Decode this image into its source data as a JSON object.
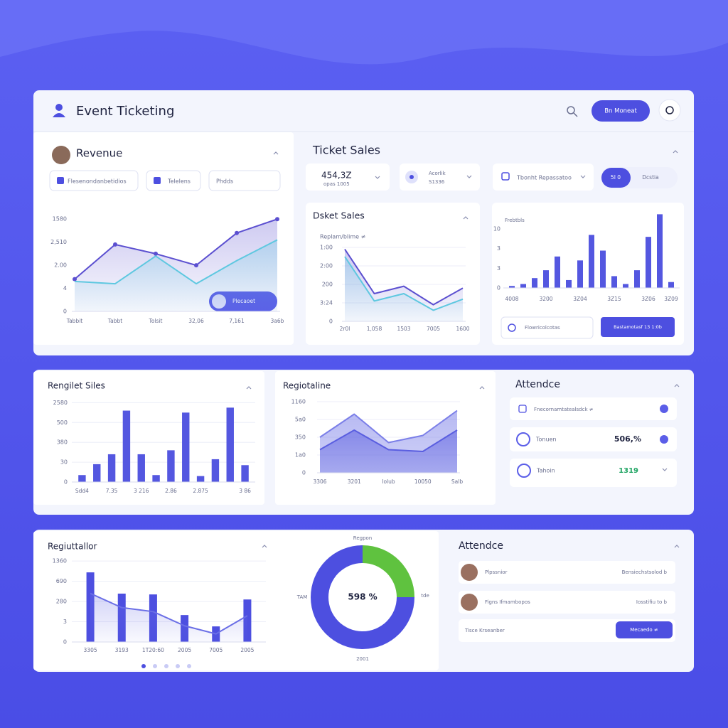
{
  "header": {
    "title": "Event Ticketing",
    "button": "Bn Moneat"
  },
  "revenue": {
    "filters": [
      "Flesenondanbetidios",
      "Telelens",
      "Phdds"
    ],
    "chart_button": "Plecaoet"
  },
  "ticket_sales": {
    "title": "Ticket Sales",
    "selects": [
      {
        "value": "454,3Z",
        "sub": "opas 1005"
      },
      {
        "value": "Acorlik",
        "sub": "S1336"
      },
      {
        "value": "Tbonht Repassatoo"
      }
    ],
    "toggle": [
      "5I 0",
      "Dcstia"
    ],
    "buttons": [
      "Flowricolcotas",
      "Bastamotasf 13 1:0b"
    ]
  },
  "attendance_1": {
    "title": "Attendce",
    "rows": [
      {
        "label": "Fnecornamtatealsdck ≠"
      },
      {
        "label": "Tonuen",
        "value": "506,%"
      },
      {
        "label": "Tahoin",
        "value": "1319"
      }
    ]
  },
  "attendance_2": {
    "title": "Attendce",
    "rows": [
      {
        "name": "Plpssnior",
        "detail": "Bensiechstsolod b"
      },
      {
        "name": "Figns Ifmambopos",
        "detail": "Iosstifiu to b"
      }
    ],
    "footer": {
      "label": "Tisce Krseanber",
      "button": "Mecaedo ≠"
    }
  },
  "chart_data": [
    {
      "type": "line",
      "title": "Revenue",
      "categories": [
        "Tabbit",
        "Tabbt",
        "Tolsit",
        "32,06",
        "7,161",
        "3a6b"
      ],
      "series": [
        {
          "color": "#5b4fd0",
          "values": [
            1.4,
            2.9,
            2.5,
            2.0,
            3.4,
            4.0
          ],
          "markers": true
        },
        {
          "color": "#5ec8e0",
          "values": [
            1.3,
            1.2,
            2.4,
            1.2,
            2.2,
            3.1
          ]
        }
      ],
      "ylim": [
        0,
        4.1
      ],
      "yticks": [
        0,
        {
          "value": 1,
          "label": "4"
        },
        {
          "value": 2,
          "label": "2.00"
        },
        {
          "value": 3,
          "label": "2,510"
        },
        {
          "value": 4,
          "label": "1580"
        }
      ],
      "fill": true,
      "grid": false
    },
    {
      "type": "line",
      "title": "Dsket Sales",
      "subtitle": "Replam/blime ≠",
      "categories": [
        "2r0l",
        "1,058",
        "1503",
        "7005",
        "1600"
      ],
      "series": [
        {
          "color": "#5b4fd0",
          "values": [
            3.9,
            1.5,
            1.9,
            0.9,
            1.8
          ]
        },
        {
          "color": "#5ec8e0",
          "values": [
            3.5,
            1.1,
            1.5,
            0.6,
            1.2
          ]
        }
      ],
      "ylim": [
        0,
        4
      ],
      "yticks": [
        0,
        {
          "value": 1,
          "label": "3:24"
        },
        {
          "value": 2,
          "label": "200"
        },
        {
          "value": 3,
          "label": "2:00"
        },
        {
          "value": 4,
          "label": "1:00"
        }
      ],
      "fill": true,
      "grid": true
    },
    {
      "type": "bar",
      "title": "Frebtbls",
      "categories": [
        "4008",
        null,
        null,
        "3200",
        null,
        null,
        "3Z04",
        null,
        null,
        "3Z15",
        null,
        null,
        "3Z06",
        null,
        "3Z09"
      ],
      "series": [
        {
          "color": "#5457e0",
          "values": [
            0.1,
            0.2,
            0.5,
            0.9,
            1.6,
            0.4,
            1.4,
            2.7,
            1.9,
            0.6,
            0.2,
            0.9,
            2.6,
            3.75,
            0.3
          ]
        }
      ],
      "ylim": [
        0,
        3.8
      ],
      "yticks": [
        0,
        {
          "value": 1,
          "label": "3"
        },
        {
          "value": 2,
          "label": "3"
        },
        {
          "value": 3,
          "label": "10"
        }
      ],
      "grid": false
    },
    {
      "type": "bar",
      "title": "Rengilet Siles",
      "categories": [
        "Sdd4",
        null,
        "7.35",
        null,
        "3 216",
        null,
        "2.86",
        null,
        "2.875",
        null,
        null,
        "3 86"
      ],
      "series": [
        {
          "color": "#5457e0",
          "values": [
            0.35,
            0.9,
            1.4,
            3.6,
            1.4,
            0.35,
            1.6,
            3.5,
            0.3,
            1.15,
            3.75,
            0.85
          ]
        }
      ],
      "ylim": [
        0,
        4.05
      ],
      "yticks": [
        0,
        {
          "value": 1,
          "label": "30"
        },
        {
          "value": 2,
          "label": "380"
        },
        {
          "value": 3,
          "label": "500"
        },
        {
          "value": 4,
          "label": "2580"
        }
      ],
      "grid": true
    },
    {
      "type": "area",
      "title": "Regiotaline",
      "categories": [
        "3306",
        "3201",
        "Iolub",
        "10050",
        "Salb"
      ],
      "series": [
        {
          "color": "#7b7fe8",
          "values": [
            2.0,
            3.3,
            1.7,
            2.1,
            3.5
          ]
        },
        {
          "color": "#5a5ee0",
          "values": [
            1.3,
            2.4,
            1.3,
            1.2,
            2.4
          ]
        }
      ],
      "ylim": [
        0,
        4
      ],
      "yticks": [
        0,
        {
          "value": 1,
          "label": "1a0"
        },
        {
          "value": 2,
          "label": "350"
        },
        {
          "value": 3,
          "label": "5a0"
        },
        {
          "value": 4,
          "label": "1160"
        }
      ],
      "grid": true
    },
    {
      "type": "combo",
      "title": "Regiuttallor",
      "categories": [
        "3305",
        "3193",
        "1T20:60",
        "2005",
        "7005",
        "2005"
      ],
      "series": [
        {
          "color": "#4d4fe0",
          "style": "bar",
          "values": [
            3.44,
            2.39,
            2.35,
            1.33,
            0.77,
            2.1
          ]
        },
        {
          "color": "#6a6ee6",
          "style": "line",
          "values": [
            2.4,
            1.7,
            1.5,
            0.8,
            0.4,
            1.3
          ]
        }
      ],
      "ylim": [
        0,
        3.97
      ],
      "yticks": [
        0,
        {
          "value": 1,
          "label": "3"
        },
        {
          "value": 2,
          "label": "280"
        },
        {
          "value": 3,
          "label": "690"
        },
        {
          "value": 4,
          "label": "1360"
        }
      ],
      "grid": true
    },
    {
      "type": "donut",
      "center_label": "598 %",
      "annotations": [
        "Regpon",
        "TAM",
        "tde",
        "2001"
      ],
      "values": [
        25,
        75
      ],
      "colors": [
        "#5fc23f",
        "#4d4fe0"
      ]
    }
  ]
}
